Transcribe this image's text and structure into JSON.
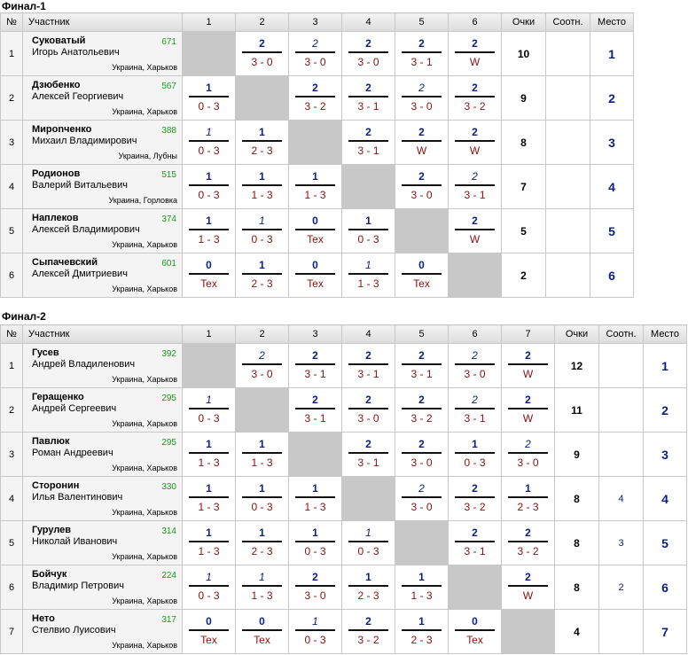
{
  "tables": [
    {
      "title": "Финал-1",
      "headers": {
        "num": "№",
        "player": "Участник",
        "cols": [
          "1",
          "2",
          "3",
          "4",
          "5",
          "6"
        ],
        "points": "Очки",
        "ratio": "Соотн.",
        "place": "Место"
      },
      "rows": [
        {
          "n": "1",
          "name": "Суковатый",
          "fullname": "Игорь Анатольевич",
          "rating": "671",
          "location": "Украина, Харьков",
          "points": "10",
          "ratio": "",
          "place": "1",
          "cells": [
            null,
            {
              "p": "2",
              "s": "3 - 0",
              "i": false
            },
            {
              "p": "2",
              "s": "3 - 0",
              "i": true
            },
            {
              "p": "2",
              "s": "3 - 0",
              "i": false
            },
            {
              "p": "2",
              "s": "3 - 1",
              "i": false
            },
            {
              "p": "2",
              "s": "W",
              "i": false
            }
          ]
        },
        {
          "n": "2",
          "name": "Дзюбенко",
          "fullname": "Алексей Георгиевич",
          "rating": "567",
          "location": "Украина, Харьков",
          "points": "9",
          "ratio": "",
          "place": "2",
          "cells": [
            {
              "p": "1",
              "s": "0 - 3",
              "i": false
            },
            null,
            {
              "p": "2",
              "s": "3 - 2",
              "i": false
            },
            {
              "p": "2",
              "s": "3 - 1",
              "i": false
            },
            {
              "p": "2",
              "s": "3 - 0",
              "i": true
            },
            {
              "p": "2",
              "s": "3 - 2",
              "i": false
            }
          ]
        },
        {
          "n": "3",
          "name": "Мирonченко",
          "fullname": "Михаил Владимирович",
          "rating": "388",
          "location": "Украина, Лубны",
          "points": "8",
          "ratio": "",
          "place": "3",
          "cells": [
            {
              "p": "1",
              "s": "0 - 3",
              "i": true
            },
            {
              "p": "1",
              "s": "2 - 3",
              "i": false
            },
            null,
            {
              "p": "2",
              "s": "3 - 1",
              "i": false
            },
            {
              "p": "2",
              "s": "W",
              "i": false
            },
            {
              "p": "2",
              "s": "W",
              "i": false
            }
          ]
        },
        {
          "n": "4",
          "name": "Родионов",
          "fullname": "Валерий Витальевич",
          "rating": "515",
          "location": "Украина, Горловка",
          "points": "7",
          "ratio": "",
          "place": "4",
          "cells": [
            {
              "p": "1",
              "s": "0 - 3",
              "i": false
            },
            {
              "p": "1",
              "s": "1 - 3",
              "i": false
            },
            {
              "p": "1",
              "s": "1 - 3",
              "i": false
            },
            null,
            {
              "p": "2",
              "s": "3 - 0",
              "i": false
            },
            {
              "p": "2",
              "s": "3 - 1",
              "i": true
            }
          ]
        },
        {
          "n": "5",
          "name": "Наплеков",
          "fullname": "Алексей Владимирович",
          "rating": "374",
          "location": "Украина, Харьков",
          "points": "5",
          "ratio": "",
          "place": "5",
          "cells": [
            {
              "p": "1",
              "s": "1 - 3",
              "i": false
            },
            {
              "p": "1",
              "s": "0 - 3",
              "i": true
            },
            {
              "p": "0",
              "s": "Tex",
              "i": false
            },
            {
              "p": "1",
              "s": "0 - 3",
              "i": false
            },
            null,
            {
              "p": "2",
              "s": "W",
              "i": false
            }
          ]
        },
        {
          "n": "6",
          "name": "Сыпачевский",
          "fullname": "Алексей Дмитриевич",
          "rating": "601",
          "location": "Украина, Харьков",
          "points": "2",
          "ratio": "",
          "place": "6",
          "cells": [
            {
              "p": "0",
              "s": "Tex",
              "i": false
            },
            {
              "p": "1",
              "s": "2 - 3",
              "i": false
            },
            {
              "p": "0",
              "s": "Tex",
              "i": false
            },
            {
              "p": "1",
              "s": "1 - 3",
              "i": true
            },
            {
              "p": "0",
              "s": "Tex",
              "i": false
            },
            null
          ]
        }
      ]
    },
    {
      "title": "Финал-2",
      "headers": {
        "num": "№",
        "player": "Участник",
        "cols": [
          "1",
          "2",
          "3",
          "4",
          "5",
          "6",
          "7"
        ],
        "points": "Очки",
        "ratio": "Соотн.",
        "place": "Место"
      },
      "rows": [
        {
          "n": "1",
          "name": "Гусев",
          "fullname": "Андрей Владиленович",
          "rating": "392",
          "location": "Украина, Харьков",
          "points": "12",
          "ratio": "",
          "place": "1",
          "cells": [
            null,
            {
              "p": "2",
              "s": "3 - 0",
              "i": true
            },
            {
              "p": "2",
              "s": "3 - 1",
              "i": false
            },
            {
              "p": "2",
              "s": "3 - 1",
              "i": false
            },
            {
              "p": "2",
              "s": "3 - 1",
              "i": false
            },
            {
              "p": "2",
              "s": "3 - 0",
              "i": true
            },
            {
              "p": "2",
              "s": "W",
              "i": false
            }
          ]
        },
        {
          "n": "2",
          "name": "Геращенко",
          "fullname": "Андрей Сергеевич",
          "rating": "295",
          "location": "Украина, Харьков",
          "points": "11",
          "ratio": "",
          "place": "2",
          "cells": [
            {
              "p": "1",
              "s": "0 - 3",
              "i": true
            },
            null,
            {
              "p": "2",
              "s": "3 - 1",
              "i": false
            },
            {
              "p": "2",
              "s": "3 - 0",
              "i": false
            },
            {
              "p": "2",
              "s": "3 - 2",
              "i": false
            },
            {
              "p": "2",
              "s": "3 - 1",
              "i": true
            },
            {
              "p": "2",
              "s": "W",
              "i": false
            }
          ]
        },
        {
          "n": "3",
          "name": "Павлюк",
          "fullname": "Роман Андреевич",
          "rating": "295",
          "location": "Украина, Харьков",
          "points": "9",
          "ratio": "",
          "place": "3",
          "cells": [
            {
              "p": "1",
              "s": "1 - 3",
              "i": false
            },
            {
              "p": "1",
              "s": "1 - 3",
              "i": false
            },
            null,
            {
              "p": "2",
              "s": "3 - 1",
              "i": false
            },
            {
              "p": "2",
              "s": "3 - 0",
              "i": false
            },
            {
              "p": "1",
              "s": "0 - 3",
              "i": false
            },
            {
              "p": "2",
              "s": "3 - 0",
              "i": true
            }
          ]
        },
        {
          "n": "4",
          "name": "Сторонин",
          "fullname": "Илья Валентинович",
          "rating": "330",
          "location": "Украина, Харьков",
          "points": "8",
          "ratio": "4",
          "place": "4",
          "cells": [
            {
              "p": "1",
              "s": "1 - 3",
              "i": false
            },
            {
              "p": "1",
              "s": "0 - 3",
              "i": false
            },
            {
              "p": "1",
              "s": "1 - 3",
              "i": false
            },
            null,
            {
              "p": "2",
              "s": "3 - 0",
              "i": true
            },
            {
              "p": "2",
              "s": "3 - 2",
              "i": false
            },
            {
              "p": "1",
              "s": "2 - 3",
              "i": false
            }
          ]
        },
        {
          "n": "5",
          "name": "Гурулев",
          "fullname": "Николай Иванович",
          "rating": "314",
          "location": "Украина, Харьков",
          "points": "8",
          "ratio": "3",
          "place": "5",
          "cells": [
            {
              "p": "1",
              "s": "1 - 3",
              "i": false
            },
            {
              "p": "1",
              "s": "2 - 3",
              "i": false
            },
            {
              "p": "1",
              "s": "0 - 3",
              "i": false
            },
            {
              "p": "1",
              "s": "0 - 3",
              "i": true
            },
            null,
            {
              "p": "2",
              "s": "3 - 1",
              "i": false
            },
            {
              "p": "2",
              "s": "3 - 2",
              "i": false
            }
          ]
        },
        {
          "n": "6",
          "name": "Бойчук",
          "fullname": "Владимир Петрович",
          "rating": "224",
          "location": "Украина, Харьков",
          "points": "8",
          "ratio": "2",
          "place": "6",
          "cells": [
            {
              "p": "1",
              "s": "0 - 3",
              "i": true
            },
            {
              "p": "1",
              "s": "1 - 3",
              "i": true
            },
            {
              "p": "2",
              "s": "3 - 0",
              "i": false
            },
            {
              "p": "1",
              "s": "2 - 3",
              "i": false
            },
            {
              "p": "1",
              "s": "1 - 3",
              "i": false
            },
            null,
            {
              "p": "2",
              "s": "W",
              "i": false
            }
          ]
        },
        {
          "n": "7",
          "name": "Нето",
          "fullname": "Стелвио Луисович",
          "rating": "317",
          "location": "Украина, Харьков",
          "points": "4",
          "ratio": "",
          "place": "7",
          "cells": [
            {
              "p": "0",
              "s": "Tex",
              "i": false
            },
            {
              "p": "0",
              "s": "Tex",
              "i": false
            },
            {
              "p": "1",
              "s": "0 - 3",
              "i": true
            },
            {
              "p": "2",
              "s": "3 - 2",
              "i": false
            },
            {
              "p": "1",
              "s": "2 - 3",
              "i": false
            },
            {
              "p": "0",
              "s": "Tex",
              "i": false
            },
            null
          ]
        }
      ]
    }
  ]
}
